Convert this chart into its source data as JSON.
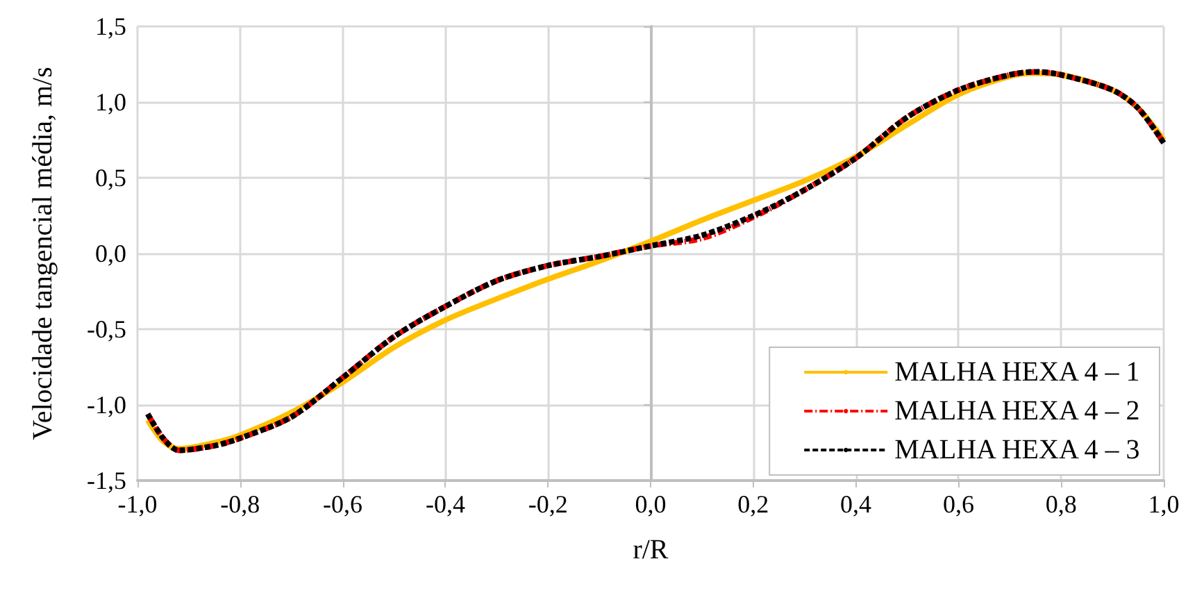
{
  "chart_data": {
    "type": "line",
    "xlabel": "r/R",
    "ylabel": "Velocidade tangencial média, m/s",
    "x": [
      -0.98,
      -0.95,
      -0.92,
      -0.85,
      -0.8,
      -0.7,
      -0.6,
      -0.5,
      -0.4,
      -0.3,
      -0.2,
      -0.1,
      0,
      0.1,
      0.2,
      0.3,
      0.4,
      0.5,
      0.6,
      0.7,
      0.75,
      0.8,
      0.9,
      0.95,
      1.0
    ],
    "series": [
      {
        "name": "MALHA HEXA 4 – 1",
        "color": "#ffc000",
        "line_style": "solid",
        "values": [
          -1.1,
          -1.24,
          -1.29,
          -1.25,
          -1.2,
          -1.05,
          -0.85,
          -0.62,
          -0.44,
          -0.3,
          -0.17,
          -0.05,
          0.08,
          0.22,
          0.35,
          0.48,
          0.64,
          0.85,
          1.05,
          1.17,
          1.19,
          1.18,
          1.08,
          0.96,
          0.75
        ]
      },
      {
        "name": "MALHA HEXA 4 – 2",
        "color": "#ff0000",
        "line_style": "dashdot",
        "values": [
          -1.06,
          -1.22,
          -1.3,
          -1.27,
          -1.22,
          -1.08,
          -0.82,
          -0.55,
          -0.35,
          -0.18,
          -0.08,
          -0.02,
          0.05,
          0.1,
          0.24,
          0.42,
          0.63,
          0.9,
          1.08,
          1.18,
          1.2,
          1.18,
          1.08,
          0.96,
          0.73
        ]
      },
      {
        "name": "MALHA HEXA 4 – 3",
        "color": "#000000",
        "line_style": "dashed",
        "values": [
          -1.06,
          -1.22,
          -1.3,
          -1.27,
          -1.22,
          -1.08,
          -0.82,
          -0.55,
          -0.35,
          -0.18,
          -0.08,
          -0.02,
          0.05,
          0.12,
          0.25,
          0.42,
          0.63,
          0.9,
          1.08,
          1.18,
          1.2,
          1.18,
          1.08,
          0.96,
          0.73
        ]
      }
    ],
    "xlim": [
      -1.0,
      1.0
    ],
    "xticks": [
      {
        "value": -1.0,
        "label": "-1,0"
      },
      {
        "value": -0.8,
        "label": "-0,8"
      },
      {
        "value": -0.6,
        "label": "-0,6"
      },
      {
        "value": -0.4,
        "label": "-0,4"
      },
      {
        "value": -0.2,
        "label": "-0,2"
      },
      {
        "value": 0,
        "label": "0,0"
      },
      {
        "value": 0.2,
        "label": "0,2"
      },
      {
        "value": 0.4,
        "label": "0,4"
      },
      {
        "value": 0.6,
        "label": "0,6"
      },
      {
        "value": 0.8,
        "label": "0,8"
      },
      {
        "value": 1.0,
        "label": "1,0"
      }
    ],
    "ylim": [
      -1.5,
      1.5
    ],
    "yticks": [
      {
        "value": -1.5,
        "label": "-1,5"
      },
      {
        "value": -1.0,
        "label": "-1,0"
      },
      {
        "value": -0.5,
        "label": "-0,5"
      },
      {
        "value": 0,
        "label": "0,0"
      },
      {
        "value": 0.5,
        "label": "0,5"
      },
      {
        "value": 1.0,
        "label": "1,0"
      },
      {
        "value": 1.5,
        "label": "1,5"
      }
    ],
    "grid": true,
    "legend": "bottom right",
    "marker": "none"
  }
}
